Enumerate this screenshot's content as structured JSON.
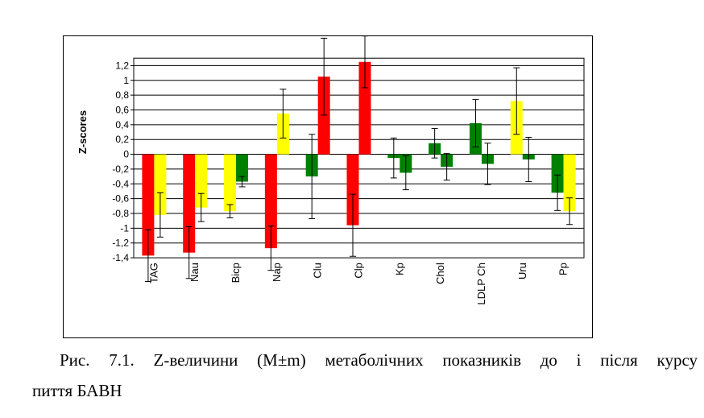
{
  "chart_data": {
    "type": "bar",
    "ylabel": "Z-scores",
    "ylim": [
      -1.4,
      1.3
    ],
    "yticks": [
      "1,2",
      "1",
      "0,8",
      "0,6",
      "0,4",
      "0,2",
      "0",
      "-0,2",
      "-0,4",
      "-0,6",
      "-0,8",
      "-1",
      "-1,2",
      "-1,4"
    ],
    "grid": true,
    "categories": [
      "TAG",
      "Nau",
      "Bicp",
      "Nap",
      "Clu",
      "Clp",
      "Kp",
      "Chol",
      "LDLP Ch",
      "Uru",
      "Pp"
    ],
    "bars": [
      [
        {
          "value": -1.37,
          "err": 0.35,
          "color": "#ff0000"
        },
        {
          "value": -0.82,
          "err": 0.3,
          "color": "#ffff00"
        }
      ],
      [
        {
          "value": -1.33,
          "err": 0.35,
          "color": "#ff0000"
        },
        {
          "value": -0.72,
          "err": 0.19,
          "color": "#ffff00"
        }
      ],
      [
        {
          "value": -0.77,
          "err": 0.09,
          "color": "#ffff00"
        },
        {
          "value": -0.37,
          "err": 0.07,
          "color": "#008000"
        }
      ],
      [
        {
          "value": -1.27,
          "err": 0.3,
          "color": "#ff0000"
        },
        {
          "value": 0.55,
          "err": 0.33,
          "color": "#ffff00"
        }
      ],
      [
        {
          "value": -0.3,
          "err": 0.57,
          "color": "#008000"
        },
        {
          "value": 1.05,
          "err": 0.52,
          "color": "#ff0000"
        }
      ],
      [
        {
          "value": -0.96,
          "err": 0.42,
          "color": "#ff0000"
        },
        {
          "value": 1.25,
          "err": 0.35,
          "color": "#ff0000"
        }
      ],
      [
        {
          "value": -0.05,
          "err": 0.27,
          "color": "#008000"
        },
        {
          "value": -0.25,
          "err": 0.23,
          "color": "#008000"
        }
      ],
      [
        {
          "value": 0.15,
          "err": 0.2,
          "color": "#008000"
        },
        {
          "value": -0.17,
          "err": 0.18,
          "color": "#008000"
        }
      ],
      [
        {
          "value": 0.42,
          "err": 0.32,
          "color": "#008000"
        },
        {
          "value": -0.13,
          "err": 0.28,
          "color": "#008000"
        }
      ],
      [
        {
          "value": 0.72,
          "err": 0.45,
          "color": "#ffff00"
        },
        {
          "value": -0.07,
          "err": 0.3,
          "color": "#008000"
        }
      ],
      [
        {
          "value": -0.52,
          "err": 0.24,
          "color": "#008000"
        },
        {
          "value": -0.77,
          "err": 0.18,
          "color": "#ffff00"
        }
      ]
    ]
  },
  "caption": {
    "line1": "Рис. 7.1. Z-величини (M±m) метаболічних показників до і після курсу",
    "line2": "пиття БАВН"
  }
}
